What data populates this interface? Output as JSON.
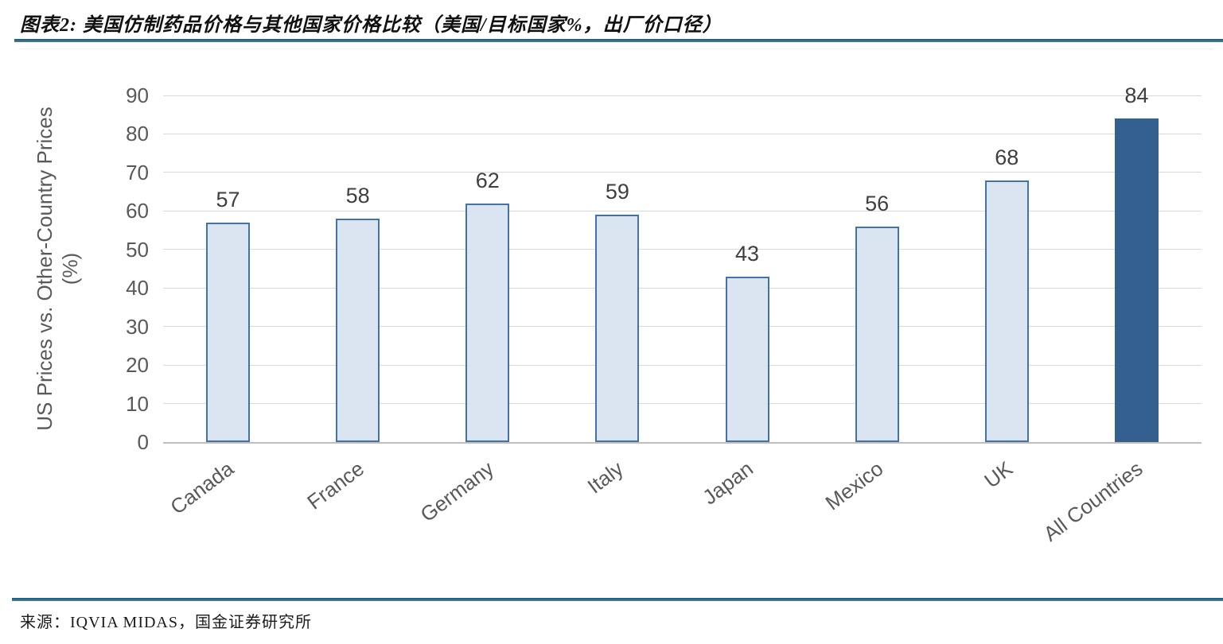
{
  "figure": {
    "title": "图表2: 美国仿制药品价格与其他国家价格比较（美国/目标国家%，出厂价口径）",
    "source": "来源：IQVIA MIDAS，国金证券研究所"
  },
  "chart_data": {
    "type": "bar",
    "categories": [
      "Canada",
      "France",
      "Germany",
      "Italy",
      "Japan",
      "Mexico",
      "UK",
      "All Countries"
    ],
    "values": [
      57,
      58,
      62,
      59,
      43,
      56,
      68,
      84
    ],
    "data_labels": [
      57,
      58,
      62,
      59,
      43,
      56,
      68,
      84
    ],
    "title": "美国仿制药品价格与其他国家价格比较（美国/目标国家%，出厂价口径）",
    "xlabel": "",
    "ylabel_line1": "US Prices vs. Other-Country Prices",
    "ylabel_line2": "(%)",
    "ylim": [
      0,
      90
    ],
    "yticks": [
      0,
      10,
      20,
      30,
      40,
      50,
      60,
      70,
      80,
      90
    ],
    "grid": true,
    "legend": "none",
    "highlight_category": "All Countries",
    "colors": {
      "bar_fill": "#dbe4f1",
      "bar_border": "#4472a4",
      "highlight_fill": "#33608f",
      "gridline": "#d9d9d9",
      "axis_line": "#bfbfbf",
      "tick_label": "#595959",
      "value_label": "#3f3f3f",
      "rule": "#2e6e90"
    }
  }
}
